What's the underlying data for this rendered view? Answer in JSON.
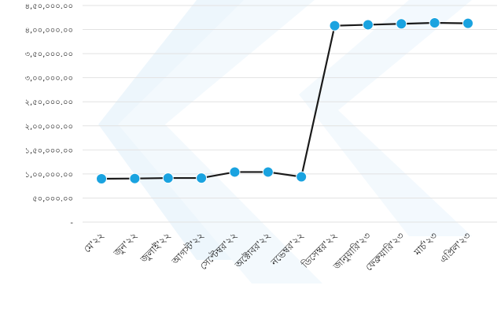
{
  "chart_data": {
    "type": "line",
    "title": "",
    "xlabel": "",
    "ylabel": "",
    "ylim": [
      0,
      450000
    ],
    "grid": true,
    "legend": "none",
    "yticks": [
      "-",
      "৫০,০০০.০০",
      "১,০০,০০০.০০",
      "১,৫০,০০০.০০",
      "২,০০,০০০.০০",
      "২,৫০,০০০.০০",
      "৩,০০,০০০.০০",
      "৩,৫০,০০০.০০",
      "৪,০০,০০০.০০",
      "৪,৫০,০০০.০০"
    ],
    "ytick_values": [
      0,
      50000,
      100000,
      150000,
      200000,
      250000,
      300000,
      350000,
      400000,
      450000
    ],
    "categories": [
      "মে'২২",
      "জুন'২২",
      "জুলাই'২২",
      "আগস্ট'২২",
      "সেপ্টেম্বর'২২",
      "অক্টোবর'২২",
      "নভেম্বর'২২",
      "ডিসেম্বর'২২",
      "জানুয়ারি'২৩",
      "ফেব্রুয়ারি'২৩",
      "মার্চ'২৩",
      "এপ্রিল'২৩"
    ],
    "series": [
      {
        "values": [
          90000,
          90500,
          91500,
          91500,
          104000,
          104000,
          94000,
          408000,
          410000,
          412000,
          414000,
          413000
        ]
      }
    ],
    "colors": {
      "line": "#1a1a1a",
      "marker": "#1aa3e0",
      "grid": "#e2e2e2",
      "watermark": "#dbeefb"
    }
  }
}
